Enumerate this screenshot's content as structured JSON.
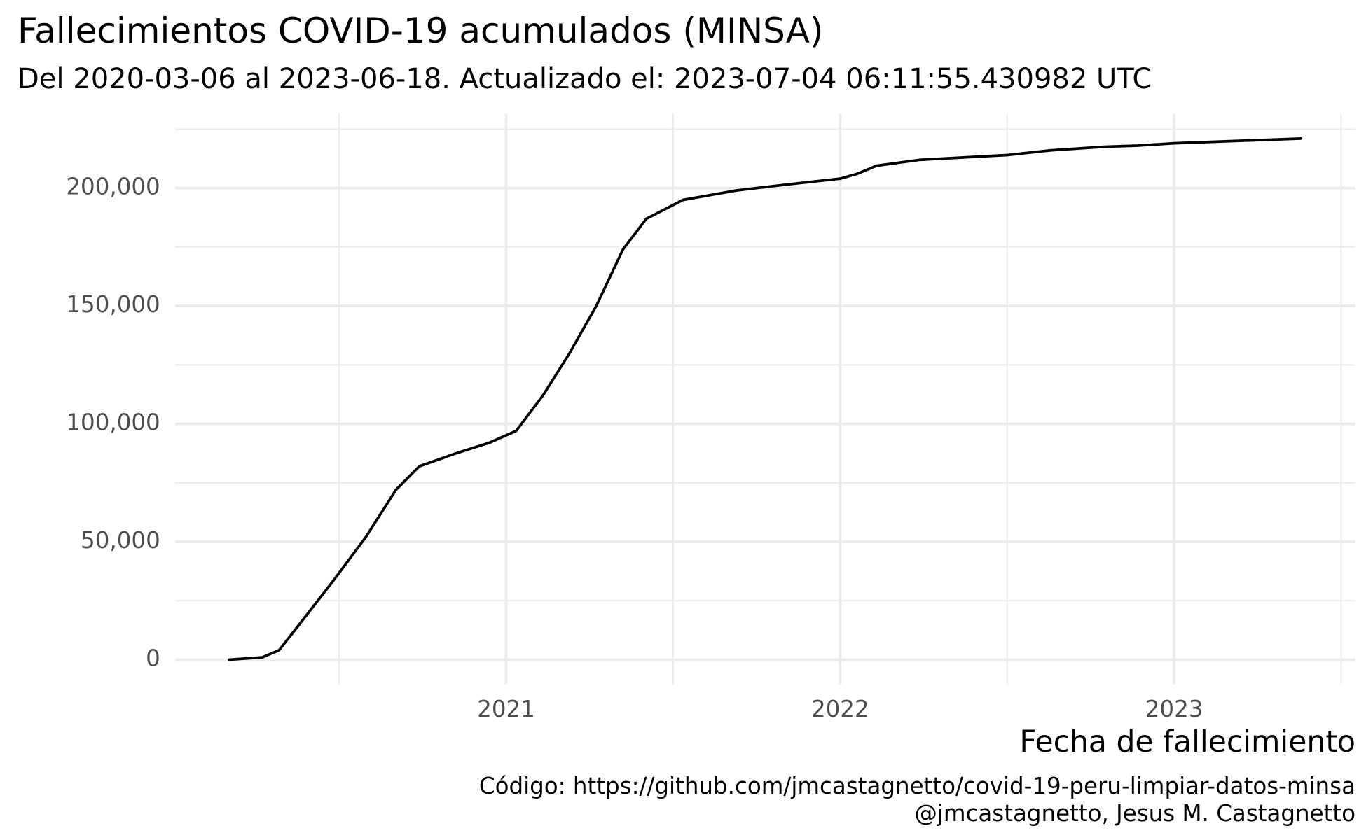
{
  "chart_data": {
    "type": "line",
    "title": "Fallecimientos COVID-19 acumulados (MINSA)",
    "subtitle": "Del 2020-03-06 al 2023-06-18. Actualizado el: 2023-07-04 06:11:55.430982 UTC",
    "x_label": "Fecha de fallecimiento",
    "caption": [
      "Código: https://github.com/jmcastagnetto/covid-19-peru-limpiar-datos-minsa",
      "@jmcastagnetto, Jesus M. Castagnetto"
    ],
    "xlim": [
      2020.009,
      2023.543
    ],
    "ylim": [
      -10400,
      231500
    ],
    "xticks": [
      2021,
      2022,
      2023
    ],
    "x_minor_ticks": [
      2020.5,
      2021.5,
      2022.5,
      2023.5
    ],
    "yticks": [
      0,
      {
        "value": 50000,
        "label": "50,000"
      },
      {
        "value": 100000,
        "label": "100,000"
      },
      {
        "value": 150000,
        "label": "150,000"
      },
      {
        "value": 200000,
        "label": "200,000"
      }
    ],
    "y_minor_ticks": [
      25000,
      75000,
      125000,
      175000,
      225000
    ],
    "grid": true,
    "series": [
      {
        "name": "Fallecimientos",
        "color": "#000000",
        "x": [
          2020.17,
          2020.27,
          2020.32,
          2020.37,
          2020.48,
          2020.58,
          2020.67,
          2020.74,
          2020.85,
          2020.95,
          2021.03,
          2021.11,
          2021.19,
          2021.27,
          2021.35,
          2021.42,
          2021.53,
          2021.69,
          2021.84,
          2022.0,
          2022.05,
          2022.11,
          2022.24,
          2022.5,
          2022.63,
          2022.79,
          2022.89,
          2023.0,
          2023.38
        ],
        "values": [
          0,
          1000,
          4000,
          13000,
          33000,
          52000,
          72000,
          82000,
          87500,
          92000,
          97000,
          112000,
          130000,
          150000,
          174000,
          187000,
          195000,
          199000,
          201500,
          204000,
          206000,
          209500,
          212000,
          214000,
          216000,
          217500,
          218000,
          219000,
          221000
        ]
      }
    ]
  }
}
